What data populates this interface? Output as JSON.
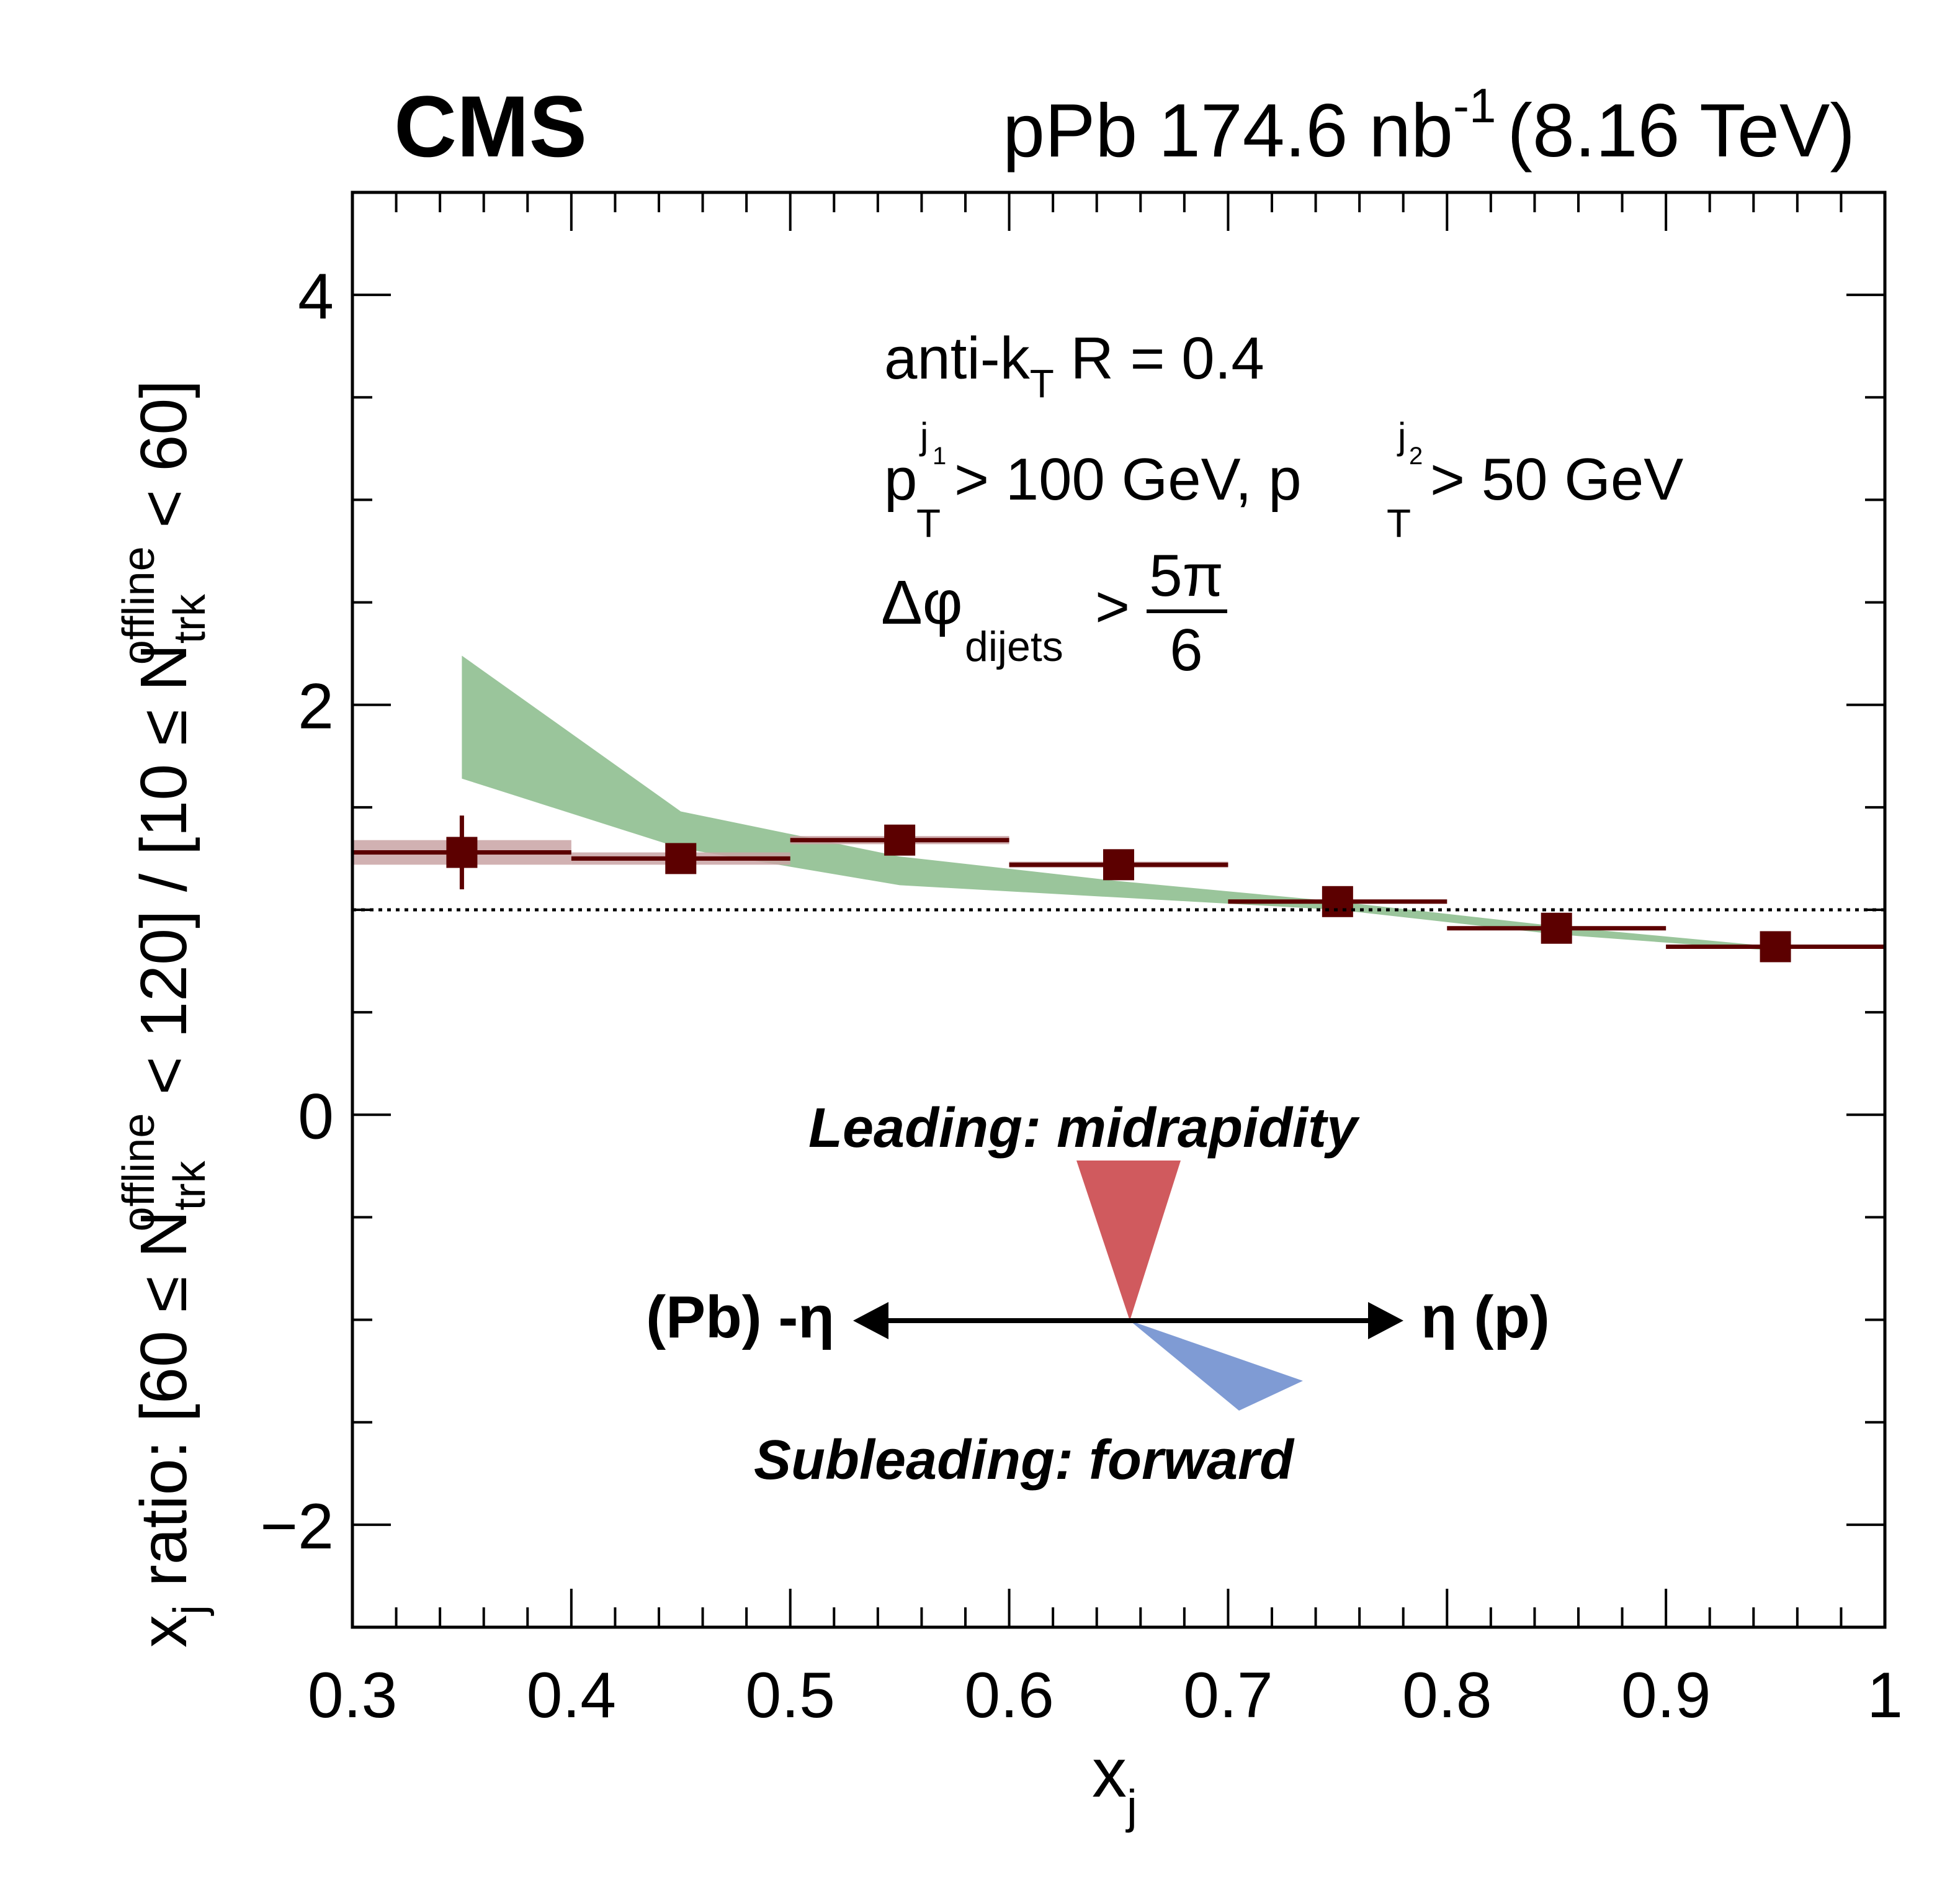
{
  "header": {
    "experiment": "CMS",
    "dataset_prefix": "pPb 174.6 nb",
    "dataset_exponent": "-1",
    "energy": "(8.16 TeV)"
  },
  "annotations": {
    "jet_alg_main": "anti-k",
    "jet_alg_sub": "T",
    "jet_alg_rest": " R = 0.4",
    "cut_p1": "p",
    "cut_p1_sub": "T",
    "cut_p1_sup": "j",
    "cut_p1_supsub": "1",
    "cut_p1_rest": " > 100 GeV, p",
    "cut_p2_sub": "T",
    "cut_p2_sup": "j",
    "cut_p2_supsub": "2",
    "cut_p2_rest": " > 50 GeV",
    "dphi_symbol": "Δφ",
    "dphi_sub": "dijets",
    "dphi_gt": ">",
    "dphi_num": "5π",
    "dphi_den": "6"
  },
  "diagram": {
    "leading_label": "Leading: midrapidity",
    "subleading_label": "Subleading: forward",
    "left_label": "(Pb) -η",
    "right_label": "η (p)",
    "leading_color": "#d05a5e",
    "subleading_color": "#7f9bd4"
  },
  "axes": {
    "xlabel_main": "x",
    "xlabel_sub": "j",
    "ylabel_x": "x",
    "ylabel_xsub": "j",
    "ylabel_a": " ratio: [60 ≤ N",
    "ylabel_a_sup": "offline",
    "ylabel_a_sub": "trk",
    "ylabel_b": " < 120] / [10 ≤ N",
    "ylabel_b_sup": "offline",
    "ylabel_b_sub": "trk",
    "ylabel_c": " < 60]"
  },
  "chart_data": {
    "type": "scatter",
    "xlim": [
      0.3,
      1.0
    ],
    "ylim": [
      -2.5,
      4.5
    ],
    "x_ticks": [
      0.3,
      0.4,
      0.5,
      0.6,
      0.7,
      0.8,
      0.9,
      1.0
    ],
    "x_tick_labels": [
      "0.3",
      "0.4",
      "0.5",
      "0.6",
      "0.7",
      "0.8",
      "0.9",
      "1"
    ],
    "y_ticks": [
      -2,
      0,
      2,
      4
    ],
    "y_tick_labels": [
      "−2",
      "0",
      "2",
      "4"
    ],
    "reference_line": 1.0,
    "series": [
      {
        "kind": "data_points",
        "color": "#5c0000",
        "syst_color": "#c9a3a5",
        "points": [
          {
            "x": 0.35,
            "y": 1.28,
            "xlow": 0.3,
            "xhigh": 0.4,
            "stat": 0.18,
            "syst": 0.06
          },
          {
            "x": 0.45,
            "y": 1.25,
            "xlow": 0.4,
            "xhigh": 0.5,
            "stat": 0.07,
            "syst": 0.03
          },
          {
            "x": 0.55,
            "y": 1.34,
            "xlow": 0.5,
            "xhigh": 0.6,
            "stat": 0.03,
            "syst": 0.02
          },
          {
            "x": 0.65,
            "y": 1.22,
            "xlow": 0.6,
            "xhigh": 0.7,
            "stat": 0.02,
            "syst": 0.015
          },
          {
            "x": 0.75,
            "y": 1.04,
            "xlow": 0.7,
            "xhigh": 0.8,
            "stat": 0.015,
            "syst": 0.01
          },
          {
            "x": 0.85,
            "y": 0.91,
            "xlow": 0.8,
            "xhigh": 0.9,
            "stat": 0.015,
            "syst": 0.01
          },
          {
            "x": 0.95,
            "y": 0.82,
            "xlow": 0.9,
            "xhigh": 1.0,
            "stat": 0.015,
            "syst": 0.01
          }
        ]
      },
      {
        "kind": "band",
        "color": "#9ac59b",
        "x": [
          0.35,
          0.45,
          0.55,
          0.65,
          0.75,
          0.85,
          0.95
        ],
        "low": [
          1.64,
          1.3,
          1.12,
          1.06,
          1.0,
          0.88,
          0.8
        ],
        "high": [
          2.24,
          1.48,
          1.26,
          1.14,
          1.04,
          0.92,
          0.82
        ]
      }
    ]
  }
}
